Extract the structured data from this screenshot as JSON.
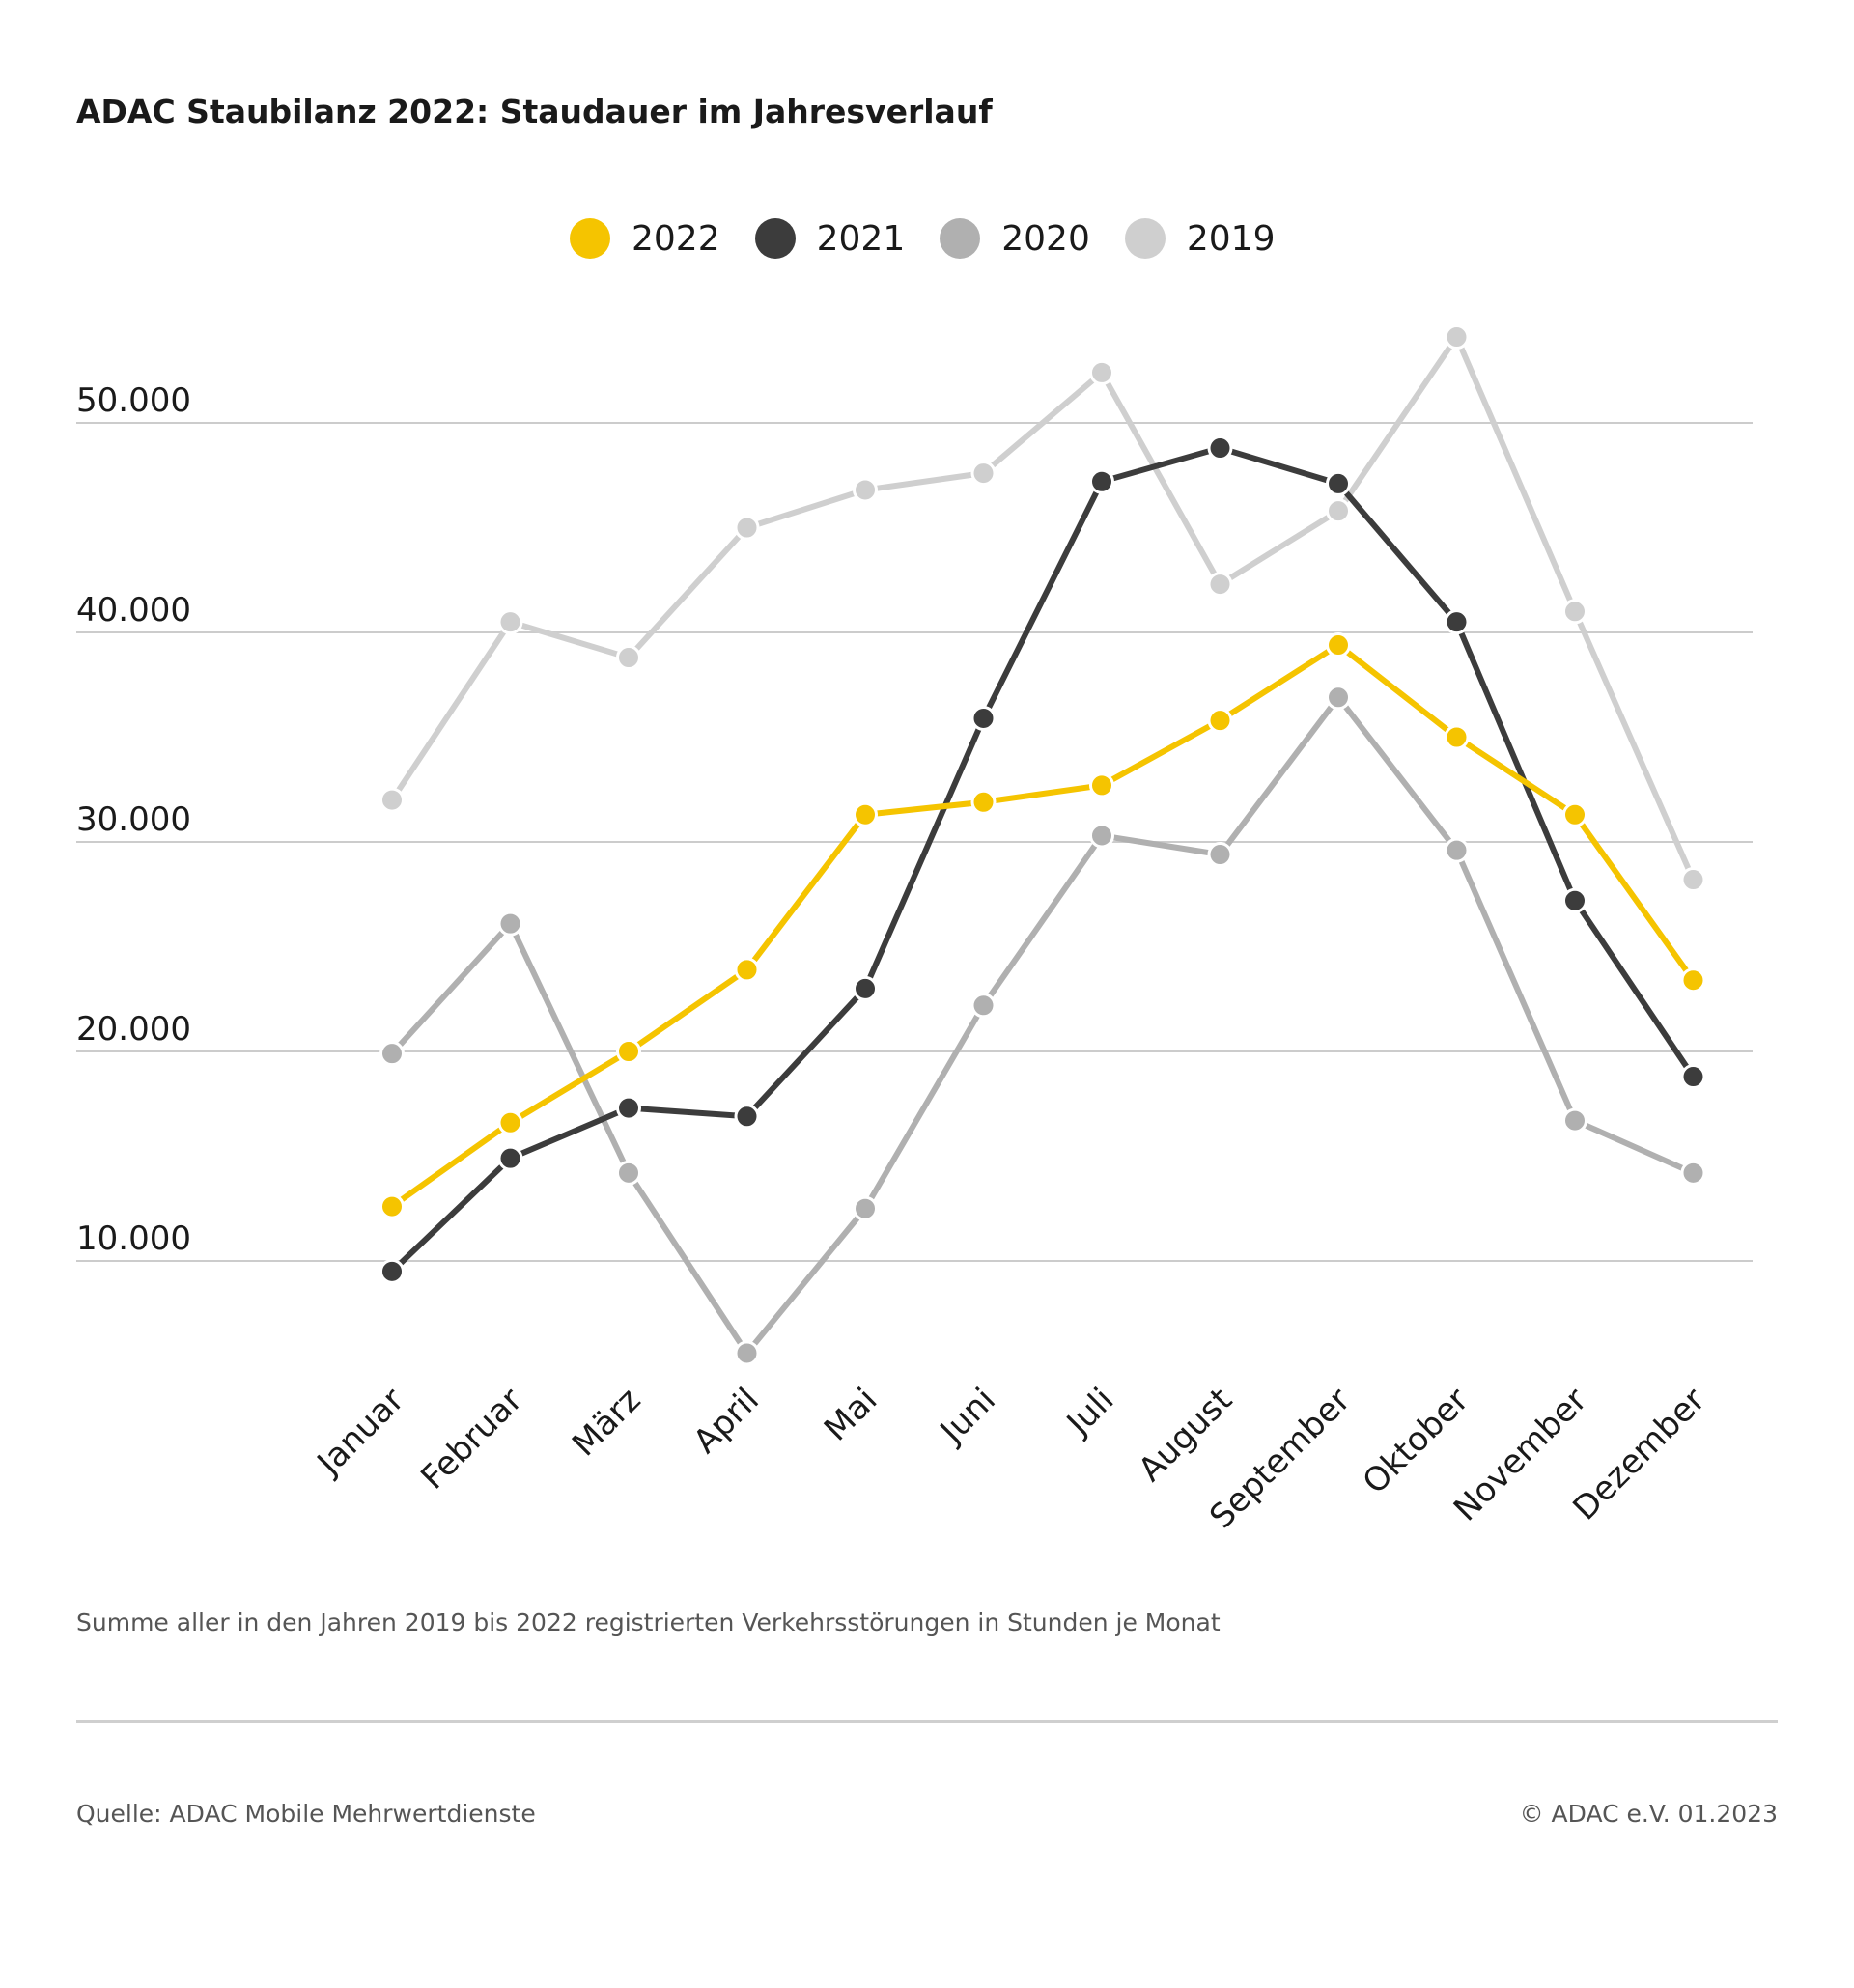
{
  "header": {
    "title": "ADAC Staubilanz 2022: Staudauer im Jahresverlauf"
  },
  "legend": [
    {
      "label": "2022",
      "color": "#f5c400"
    },
    {
      "label": "2021",
      "color": "#3c3c3c"
    },
    {
      "label": "2020",
      "color": "#b0b0b0"
    },
    {
      "label": "2019",
      "color": "#cfcfcf"
    }
  ],
  "chart_data": {
    "type": "line",
    "title": "ADAC Staubilanz 2022: Staudauer im Jahresverlauf",
    "xlabel": "",
    "ylabel": "",
    "ylim": [
      5000,
      55000
    ],
    "yticks": [
      10000,
      20000,
      30000,
      40000,
      50000
    ],
    "ytick_labels": [
      "10.000",
      "20.000",
      "30.000",
      "40.000",
      "50.000"
    ],
    "grid": true,
    "legend_position": "top-center",
    "categories": [
      "Januar",
      "Februar",
      "März",
      "April",
      "Mai",
      "Juni",
      "Juli",
      "August",
      "September",
      "Oktober",
      "November",
      "Dezember"
    ],
    "series": [
      {
        "name": "2019",
        "color": "#cfcfcf",
        "values": [
          32000,
          40500,
          38800,
          45000,
          46800,
          47600,
          52400,
          42300,
          45800,
          54100,
          41000,
          28200
        ]
      },
      {
        "name": "2020",
        "color": "#b0b0b0",
        "values": [
          19900,
          26100,
          14200,
          5600,
          12500,
          22200,
          30300,
          29400,
          36900,
          29600,
          16700,
          14200
        ]
      },
      {
        "name": "2021",
        "color": "#3c3c3c",
        "values": [
          9500,
          14900,
          17300,
          16900,
          23000,
          35900,
          47200,
          48800,
          47100,
          40500,
          27200,
          18800
        ]
      },
      {
        "name": "2022",
        "color": "#f5c400",
        "values": [
          12600,
          16600,
          20000,
          23900,
          31300,
          31900,
          32700,
          35800,
          39400,
          35000,
          31300,
          23400
        ]
      }
    ]
  },
  "footer": {
    "subtitle": "Summe aller in den Jahren 2019 bis 2022 registrierten Verkehrsstörungen in Stunden je Monat",
    "source": "Quelle: ADAC Mobile Mehrwertdienste",
    "copyright": "© ADAC e.V. 01.2023"
  }
}
